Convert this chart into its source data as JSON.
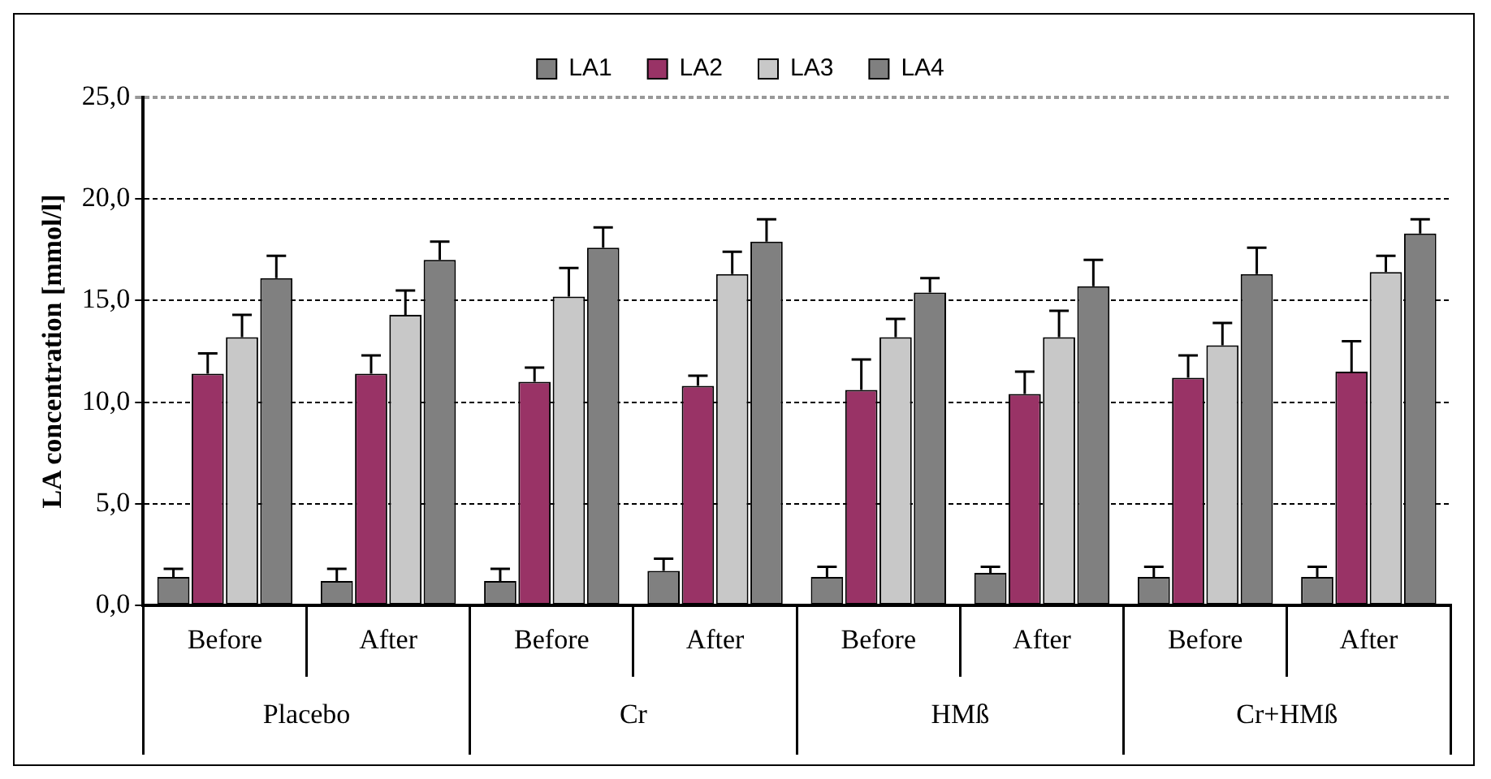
{
  "chart_data": {
    "type": "bar",
    "ylabel": "LA concentration [mmol/l]",
    "categories": [
      "Before",
      "After",
      "Before",
      "After",
      "Before",
      "After",
      "Before",
      "After"
    ],
    "annotations": [
      "Placebo",
      "Cr",
      "HMß",
      "Cr+HMß"
    ],
    "series": [
      {
        "name": "LA1",
        "color": "#808080",
        "values": [
          1.4,
          1.2,
          1.2,
          1.7,
          1.4,
          1.6,
          1.4,
          1.4
        ],
        "errors": [
          [
            1.4,
            1.8
          ],
          [
            1.2,
            1.8
          ],
          [
            1.2,
            1.8
          ],
          [
            1.7,
            2.3
          ],
          [
            1.4,
            1.9
          ],
          [
            1.6,
            1.9
          ],
          [
            1.4,
            1.9
          ],
          [
            1.4,
            1.9
          ]
        ]
      },
      {
        "name": "LA2",
        "color": "#993366",
        "values": [
          11.4,
          11.4,
          11.0,
          10.8,
          10.6,
          10.4,
          11.2,
          11.5
        ],
        "errors": [
          [
            11.4,
            12.4
          ],
          [
            11.4,
            12.3
          ],
          [
            11.0,
            11.7
          ],
          [
            10.8,
            11.3
          ],
          [
            10.6,
            12.1
          ],
          [
            10.4,
            11.5
          ],
          [
            11.2,
            12.3
          ],
          [
            11.5,
            13.0
          ]
        ]
      },
      {
        "name": "LA3",
        "color": "#c8c8c8",
        "values": [
          13.2,
          14.3,
          15.2,
          16.3,
          13.2,
          13.2,
          12.8,
          16.4
        ],
        "errors": [
          [
            13.2,
            14.3
          ],
          [
            14.3,
            15.5
          ],
          [
            15.2,
            16.6
          ],
          [
            16.3,
            17.4
          ],
          [
            13.2,
            14.1
          ],
          [
            13.2,
            14.5
          ],
          [
            12.8,
            13.9
          ],
          [
            16.4,
            17.2
          ]
        ]
      },
      {
        "name": "LA4",
        "color": "#808080",
        "values": [
          16.1,
          17.0,
          17.6,
          17.9,
          15.4,
          15.7,
          16.3,
          18.3
        ],
        "errors": [
          [
            16.1,
            17.2
          ],
          [
            17.0,
            17.9
          ],
          [
            17.6,
            18.6
          ],
          [
            17.9,
            19.0
          ],
          [
            15.4,
            16.1
          ],
          [
            15.7,
            17.0
          ],
          [
            16.3,
            17.6
          ],
          [
            18.3,
            19.0
          ]
        ]
      }
    ],
    "ylim": [
      0,
      25
    ],
    "yticks": [
      {
        "value": 0,
        "label": "0,0"
      },
      {
        "value": 5,
        "label": "5,0"
      },
      {
        "value": 10,
        "label": "10,0"
      },
      {
        "value": 15,
        "label": "15,0"
      },
      {
        "value": 20,
        "label": "20,0"
      },
      {
        "value": 25,
        "label": "25,0"
      }
    ],
    "grid": "y",
    "legend": "top"
  }
}
